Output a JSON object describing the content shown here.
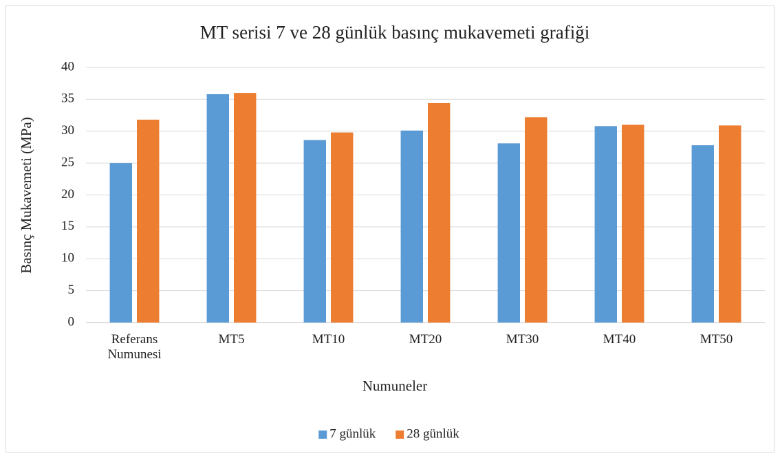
{
  "chart_data": {
    "type": "bar",
    "title": "MT serisi 7 ve 28 günlük basınç mukavemeti grafiği",
    "x_label": "Numuneler",
    "y_label": "Basınç Mukavemeti (MPa)",
    "categories": [
      "Referans Numunesi",
      "MT5",
      "MT10",
      "MT20",
      "MT30",
      "MT40",
      "MT50"
    ],
    "series": [
      {
        "name": "7 günlük",
        "color": "#5b9bd5",
        "values": [
          25,
          35.8,
          28.6,
          30.1,
          28.1,
          30.8,
          27.8
        ]
      },
      {
        "name": "28 günlük",
        "color": "#ed7d31",
        "values": [
          31.8,
          36,
          29.8,
          34.4,
          32.2,
          31,
          30.9
        ]
      }
    ],
    "ylim": [
      0,
      40
    ],
    "yticks": [
      0,
      5,
      10,
      15,
      20,
      25,
      30,
      35,
      40
    ],
    "grid": true,
    "legend": "bottom"
  }
}
